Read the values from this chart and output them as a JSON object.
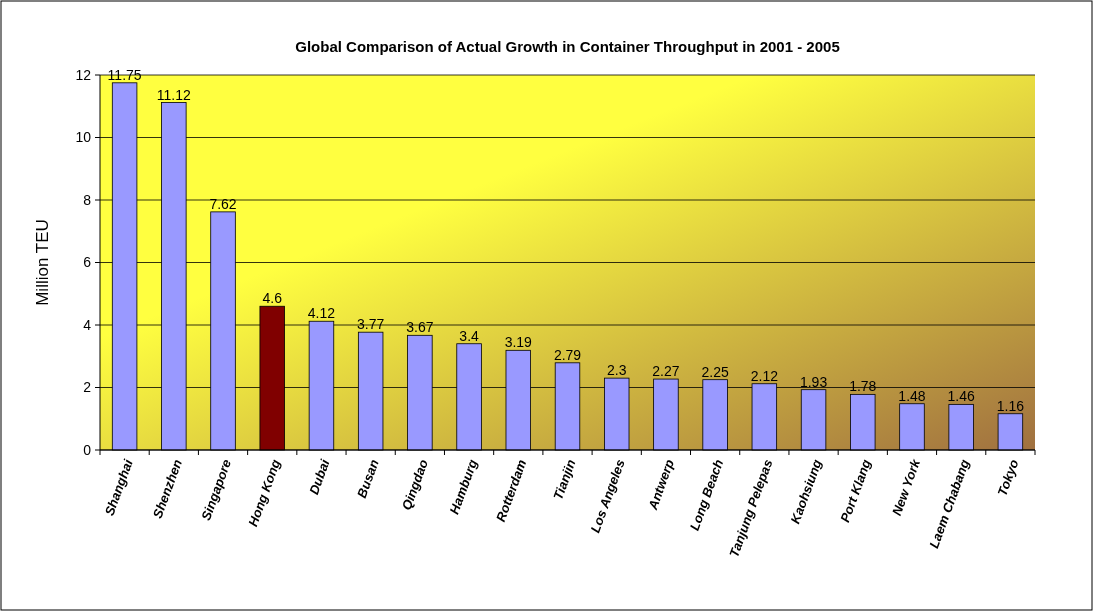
{
  "chart_data": {
    "type": "bar",
    "title": "Global Comparison of Actual Growth in Container Throughput in 2001 - 2005",
    "ylabel": "Million TEU",
    "categories": [
      "Shanghai",
      "Shenzhen",
      "Singapore",
      "Hong Kong",
      "Dubai",
      "Busan",
      "Qingdao",
      "Hamburg",
      "Rotterdam",
      "Tianjin",
      "Los Angeles",
      "Antwerp",
      "Long Beach",
      "Tanjung Pelepas",
      "Kaohsiung",
      "Port Klang",
      "New York",
      "Laem Chabang",
      "Tokyo"
    ],
    "values": [
      11.75,
      11.12,
      7.62,
      4.6,
      4.12,
      3.77,
      3.67,
      3.4,
      3.19,
      2.79,
      2.3,
      2.27,
      2.25,
      2.12,
      1.93,
      1.78,
      1.48,
      1.46,
      1.16
    ],
    "colors": [
      "#9999ff",
      "#9999ff",
      "#9999ff",
      "#800000",
      "#9999ff",
      "#9999ff",
      "#9999ff",
      "#9999ff",
      "#9999ff",
      "#9999ff",
      "#9999ff",
      "#9999ff",
      "#9999ff",
      "#9999ff",
      "#9999ff",
      "#9999ff",
      "#9999ff",
      "#9999ff",
      "#9999ff"
    ],
    "ylim": [
      0,
      12
    ],
    "yticks": [
      0,
      2,
      4,
      6,
      8,
      10,
      12
    ],
    "grid": "y",
    "data_labels": true
  }
}
